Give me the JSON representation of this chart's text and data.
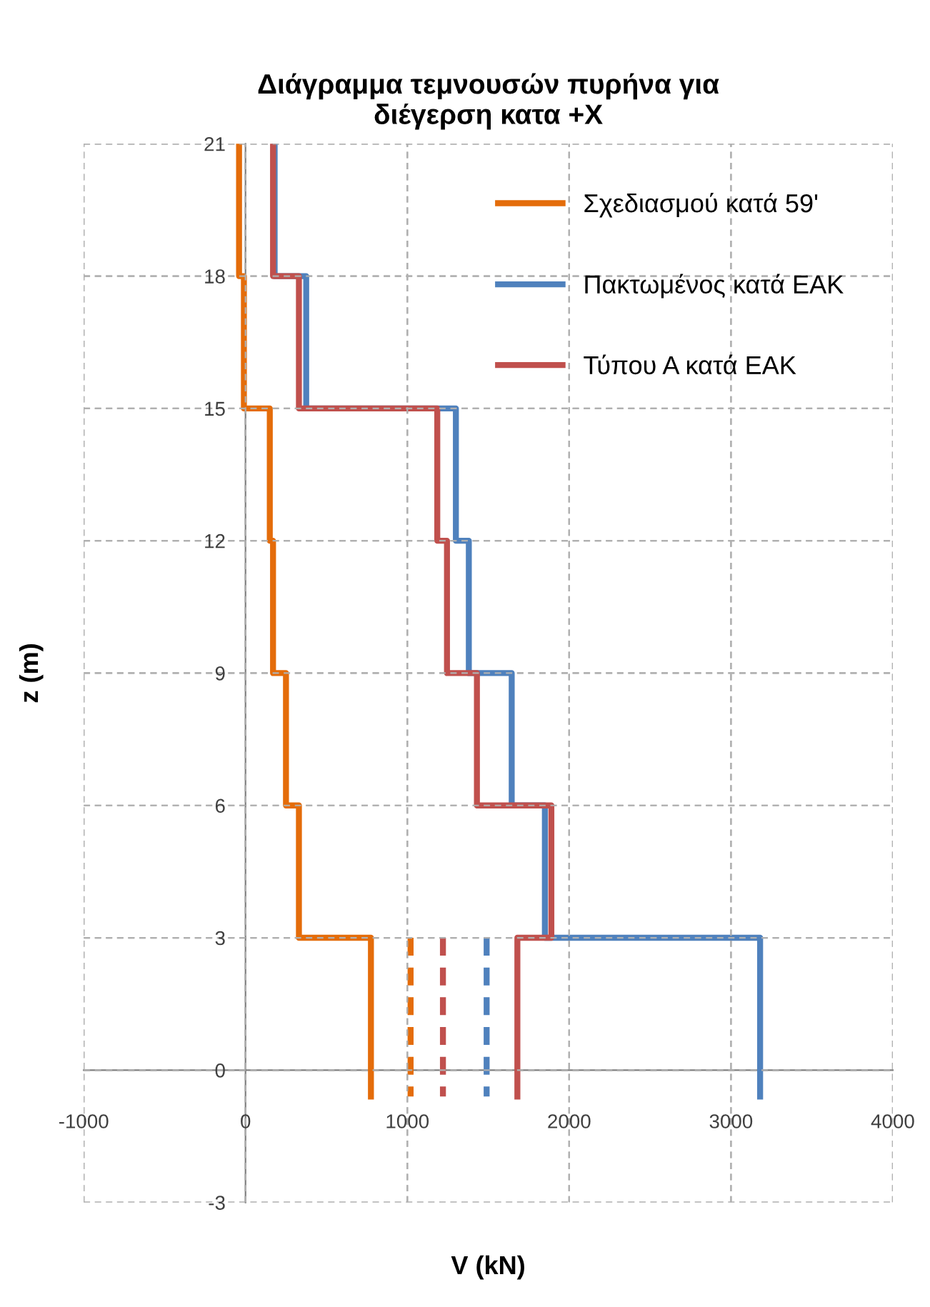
{
  "chart_data": {
    "type": "line",
    "title": "Διάγραμμα τεμνουσών πυρήνα για\nδιέγερση κατα +Χ",
    "xlabel": "V (kN)",
    "ylabel": "z (m)",
    "xlim": [
      -1000,
      4000
    ],
    "xticks": [
      -1000,
      0,
      1000,
      2000,
      3000,
      4000
    ],
    "ylim": [
      -3,
      21
    ],
    "yticks": [
      -3,
      0,
      3,
      6,
      9,
      12,
      15,
      18,
      21
    ],
    "grid": true,
    "legend": "top right",
    "line_style": "solid",
    "marker": "none",
    "series": [
      {
        "name": "Σχεδιασμού κατά 59'",
        "color": "#e46c0a",
        "x": [
          -40,
          -40,
          -10,
          -10,
          150,
          150,
          170,
          170,
          250,
          250,
          330,
          330,
          775,
          775
        ],
        "values": [
          21,
          18,
          18,
          15,
          15,
          12,
          12,
          9,
          9,
          6,
          6,
          3,
          3,
          -0.6
        ]
      },
      {
        "name": "Πακτωμένος κατά ΕΑΚ",
        "color": "#4f81bd",
        "x": [
          180,
          180,
          375,
          375,
          1300,
          1300,
          1380,
          1380,
          1645,
          1645,
          1850,
          1850,
          3180,
          3180
        ],
        "values": [
          21,
          18,
          18,
          15,
          15,
          12,
          12,
          9,
          9,
          6,
          6,
          3,
          3,
          -0.6
        ]
      },
      {
        "name": "Τύπου Α κατά ΕΑΚ",
        "color": "#c0504d",
        "x": [
          170,
          170,
          330,
          330,
          1185,
          1185,
          1245,
          1245,
          1430,
          1430,
          1890,
          1890,
          1680,
          1680
        ],
        "values": [
          21,
          18,
          18,
          15,
          15,
          12,
          12,
          9,
          9,
          6,
          6,
          3,
          3,
          -0.6
        ]
      },
      {
        "color": "#e46c0a",
        "line_style": "dashed",
        "x": [
          1020,
          1020
        ],
        "values": [
          3,
          -0.6
        ]
      },
      {
        "color": "#c0504d",
        "line_style": "dashed",
        "x": [
          1220,
          1220
        ],
        "values": [
          3,
          -0.6
        ]
      },
      {
        "color": "#4f81bd",
        "line_style": "dashed",
        "x": [
          1490,
          1490
        ],
        "values": [
          3,
          -0.6
        ]
      }
    ]
  }
}
